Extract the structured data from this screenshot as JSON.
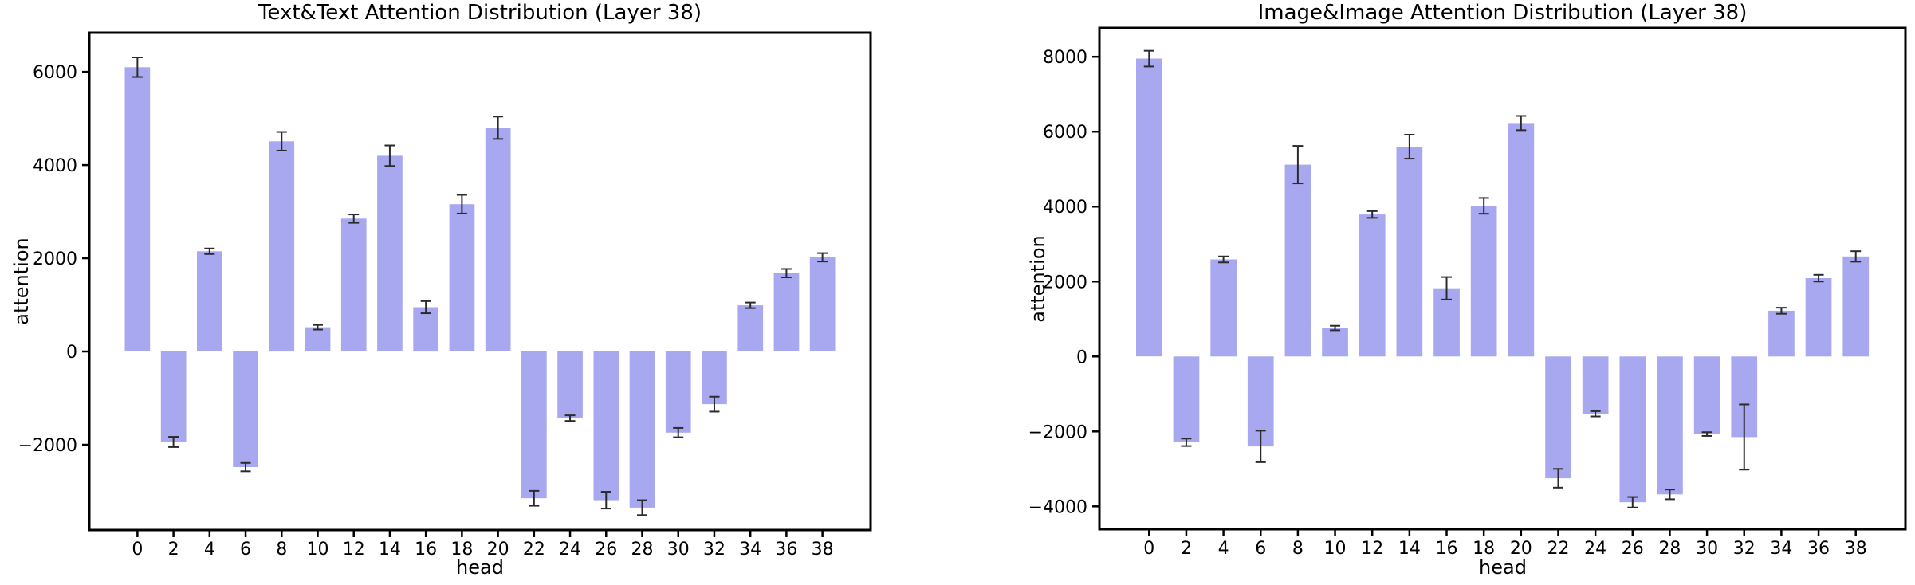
{
  "figure": {
    "background": "#ffffff",
    "bar_color": "#a8a8f0",
    "error_color": "#2b2b2b",
    "axis_color": "#000000"
  },
  "chart_data": [
    {
      "type": "bar",
      "title": "Text&Text Attention Distribution (Layer 38)",
      "xlabel": "head",
      "ylabel": "attention",
      "categories": [
        0,
        2,
        4,
        6,
        8,
        10,
        12,
        14,
        16,
        18,
        20,
        22,
        24,
        26,
        28,
        30,
        32,
        34,
        36,
        38
      ],
      "values": [
        6100,
        -1940,
        2150,
        -2480,
        4510,
        520,
        2850,
        4200,
        950,
        3160,
        4800,
        -3150,
        -1430,
        -3190,
        -3350,
        -1740,
        -1130,
        990,
        1680,
        2020
      ],
      "errors": [
        210,
        110,
        60,
        90,
        200,
        50,
        90,
        220,
        130,
        200,
        240,
        160,
        60,
        180,
        160,
        100,
        160,
        60,
        90,
        90
      ],
      "yticks": [
        6000,
        4000,
        2000,
        0,
        -2000
      ],
      "ylim": [
        -3830,
        6840
      ],
      "xlim": [
        -2.67,
        40.67
      ],
      "bar_width_units": 1.4,
      "grid": false
    },
    {
      "type": "bar",
      "title": "Image&Image Attention Distribution (Layer 38)",
      "xlabel": "head",
      "ylabel": "attention",
      "categories": [
        0,
        2,
        4,
        6,
        8,
        10,
        12,
        14,
        16,
        18,
        20,
        22,
        24,
        26,
        28,
        30,
        32,
        34,
        36,
        38
      ],
      "values": [
        7950,
        -2290,
        2590,
        -2400,
        5120,
        760,
        3790,
        5600,
        1820,
        4020,
        6230,
        -3250,
        -1530,
        -3890,
        -3680,
        -2070,
        -2150,
        1220,
        2090,
        2670
      ],
      "errors": [
        210,
        100,
        80,
        420,
        500,
        60,
        90,
        320,
        300,
        210,
        190,
        250,
        70,
        140,
        130,
        50,
        870,
        80,
        90,
        140
      ],
      "yticks": [
        8000,
        6000,
        4000,
        2000,
        0,
        -2000,
        -4000
      ],
      "ylim": [
        -4610,
        8770
      ],
      "xlim": [
        -2.67,
        40.67
      ],
      "bar_width_units": 1.4,
      "grid": false
    }
  ]
}
